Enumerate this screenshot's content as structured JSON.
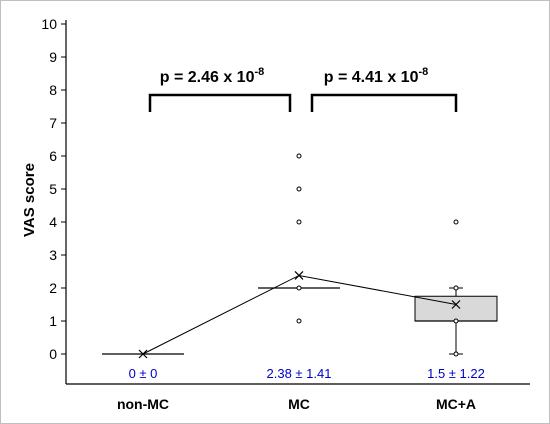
{
  "colors": {
    "axis": "#000000",
    "box_fill": "#d9d9d9",
    "box_stroke": "#000000",
    "stat_text": "#0000cc",
    "border": "#bfbfbf"
  },
  "chart_data": {
    "type": "box",
    "ylabel": "VAS score",
    "xlabel": "",
    "ylim": [
      0,
      10
    ],
    "yticks": [
      "0",
      "1",
      "2",
      "3",
      "4",
      "5",
      "6",
      "7",
      "8",
      "9",
      "10"
    ],
    "categories": [
      "non-MC",
      "MC",
      "MC+A"
    ],
    "groups": [
      {
        "name": "non-MC",
        "min": 0,
        "q1": 0,
        "median": 0,
        "q3": 0,
        "max": 0,
        "mean": 0,
        "outliers": [],
        "stat_label": "0 ± 0"
      },
      {
        "name": "MC",
        "min": 2,
        "q1": 2,
        "median": 2,
        "q3": 2,
        "max": 2,
        "mean": 2.38,
        "outliers": [
          1,
          2,
          4,
          5,
          6
        ],
        "stat_label": "2.38 ± 1.41"
      },
      {
        "name": "MC+A",
        "min": 0,
        "q1": 1,
        "median": 1,
        "q3": 1.75,
        "max": 2,
        "mean": 1.5,
        "outliers": [
          0,
          1,
          2,
          4
        ],
        "stat_label": "1.5 ± 1.22"
      }
    ],
    "mean_line": true,
    "comparisons": [
      {
        "from": "non-MC",
        "to": "MC",
        "label_base": "p = 2.46 x 10",
        "label_exp": "-8"
      },
      {
        "from": "MC",
        "to": "MC+A",
        "label_base": "p = 4.41 x 10",
        "label_exp": "-8"
      }
    ]
  }
}
